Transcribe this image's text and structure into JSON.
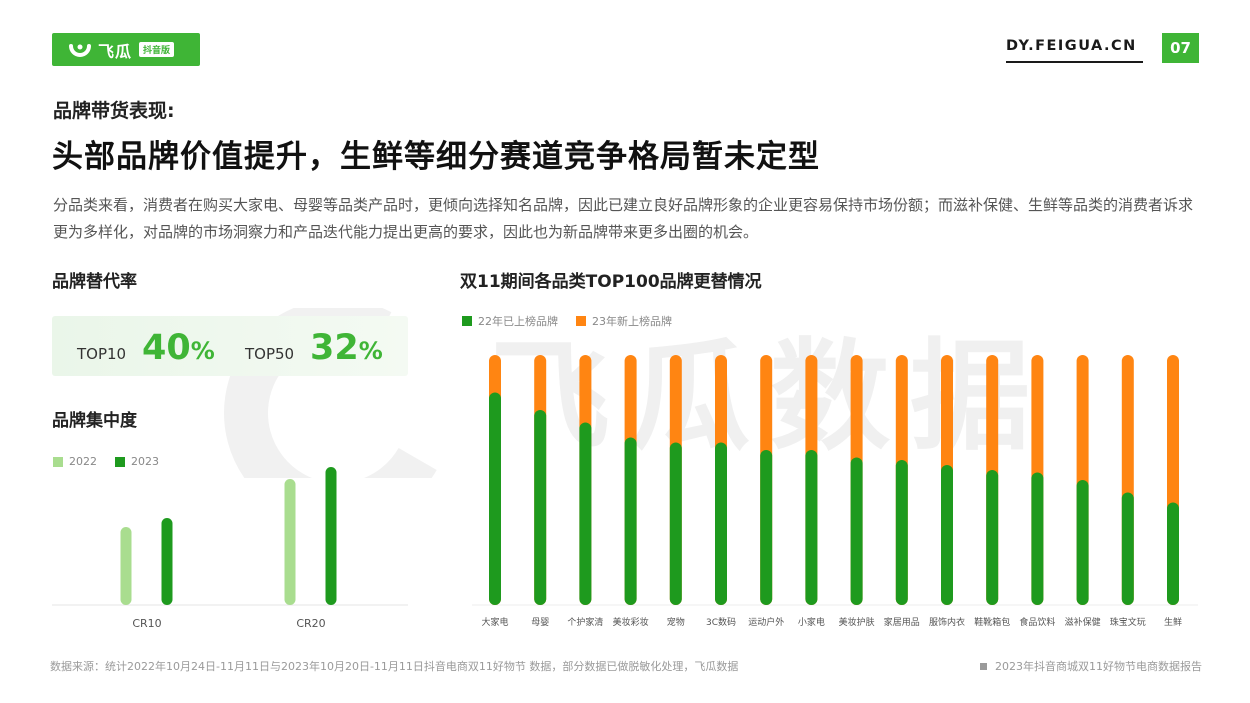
{
  "brand": {
    "logo_text": "飞瓜",
    "logo_tag": "抖音版",
    "site": "DY.FEIGUA.CN",
    "page_number": "07",
    "watermark": "飞瓜数据"
  },
  "header": {
    "kicker": "品牌带货表现:",
    "headline": "头部品牌价值提升，生鲜等细分赛道竞争格局暂未定型",
    "intro": "分品类来看，消费者在购买大家电、母婴等品类产品时，更倾向选择知名品牌，因此已建立良好品牌形象的企业更容易保持市场份额；而滋补保健、生鲜等品类的消费者诉求更为多样化，对品牌的市场洞察力和产品迭代能力提出更高的要求，因此也为新品牌带来更多出圈的机会。"
  },
  "replacement_rate": {
    "title": "品牌替代率",
    "items": [
      {
        "label": "TOP10",
        "value": "40",
        "unit": "%"
      },
      {
        "label": "TOP50",
        "value": "32",
        "unit": "%"
      }
    ]
  },
  "colors": {
    "accent": "#3fb536",
    "green_dark": "#1e9a1e",
    "green_light": "#a9dd8f",
    "orange": "#ff8512"
  },
  "chart_data": [
    {
      "type": "bar",
      "title": "品牌集中度",
      "categories": [
        "CR10",
        "CR20"
      ],
      "series": [
        {
          "name": "2022",
          "values": [
            0.26,
            0.42
          ]
        },
        {
          "name": "2023",
          "values": [
            0.29,
            0.46
          ]
        }
      ],
      "ylim": [
        0,
        0.5
      ],
      "legend": "top-left",
      "grid": false
    },
    {
      "type": "bar",
      "stacked": true,
      "title": "双11期间各品类TOP100品牌更替情况",
      "categories": [
        "大家电",
        "母婴",
        "个护家清",
        "美妆彩妆",
        "宠物",
        "3C数码",
        "运动户外",
        "小家电",
        "美妆护肤",
        "家居用品",
        "服饰内衣",
        "鞋靴箱包",
        "食品饮料",
        "滋补保健",
        "珠宝文玩",
        "生鲜"
      ],
      "series": [
        {
          "name": "22年已上榜品牌",
          "values": [
            85,
            78,
            73,
            67,
            65,
            65,
            62,
            62,
            59,
            58,
            56,
            54,
            53,
            50,
            45,
            41
          ]
        },
        {
          "name": "23年新上榜品牌",
          "values": [
            15,
            22,
            27,
            33,
            35,
            35,
            38,
            38,
            41,
            42,
            44,
            46,
            47,
            50,
            55,
            59
          ]
        }
      ],
      "ylim": [
        0,
        100
      ],
      "legend": "top-left",
      "grid": false
    }
  ],
  "footer": {
    "source": "数据来源：统计2022年10月24日-11月11日与2023年10月20日-11月11日抖音电商双11好物节 数据，部分数据已做脱敏化处理，飞瓜数据",
    "report": "2023年抖音商城双11好物节电商数据报告"
  }
}
